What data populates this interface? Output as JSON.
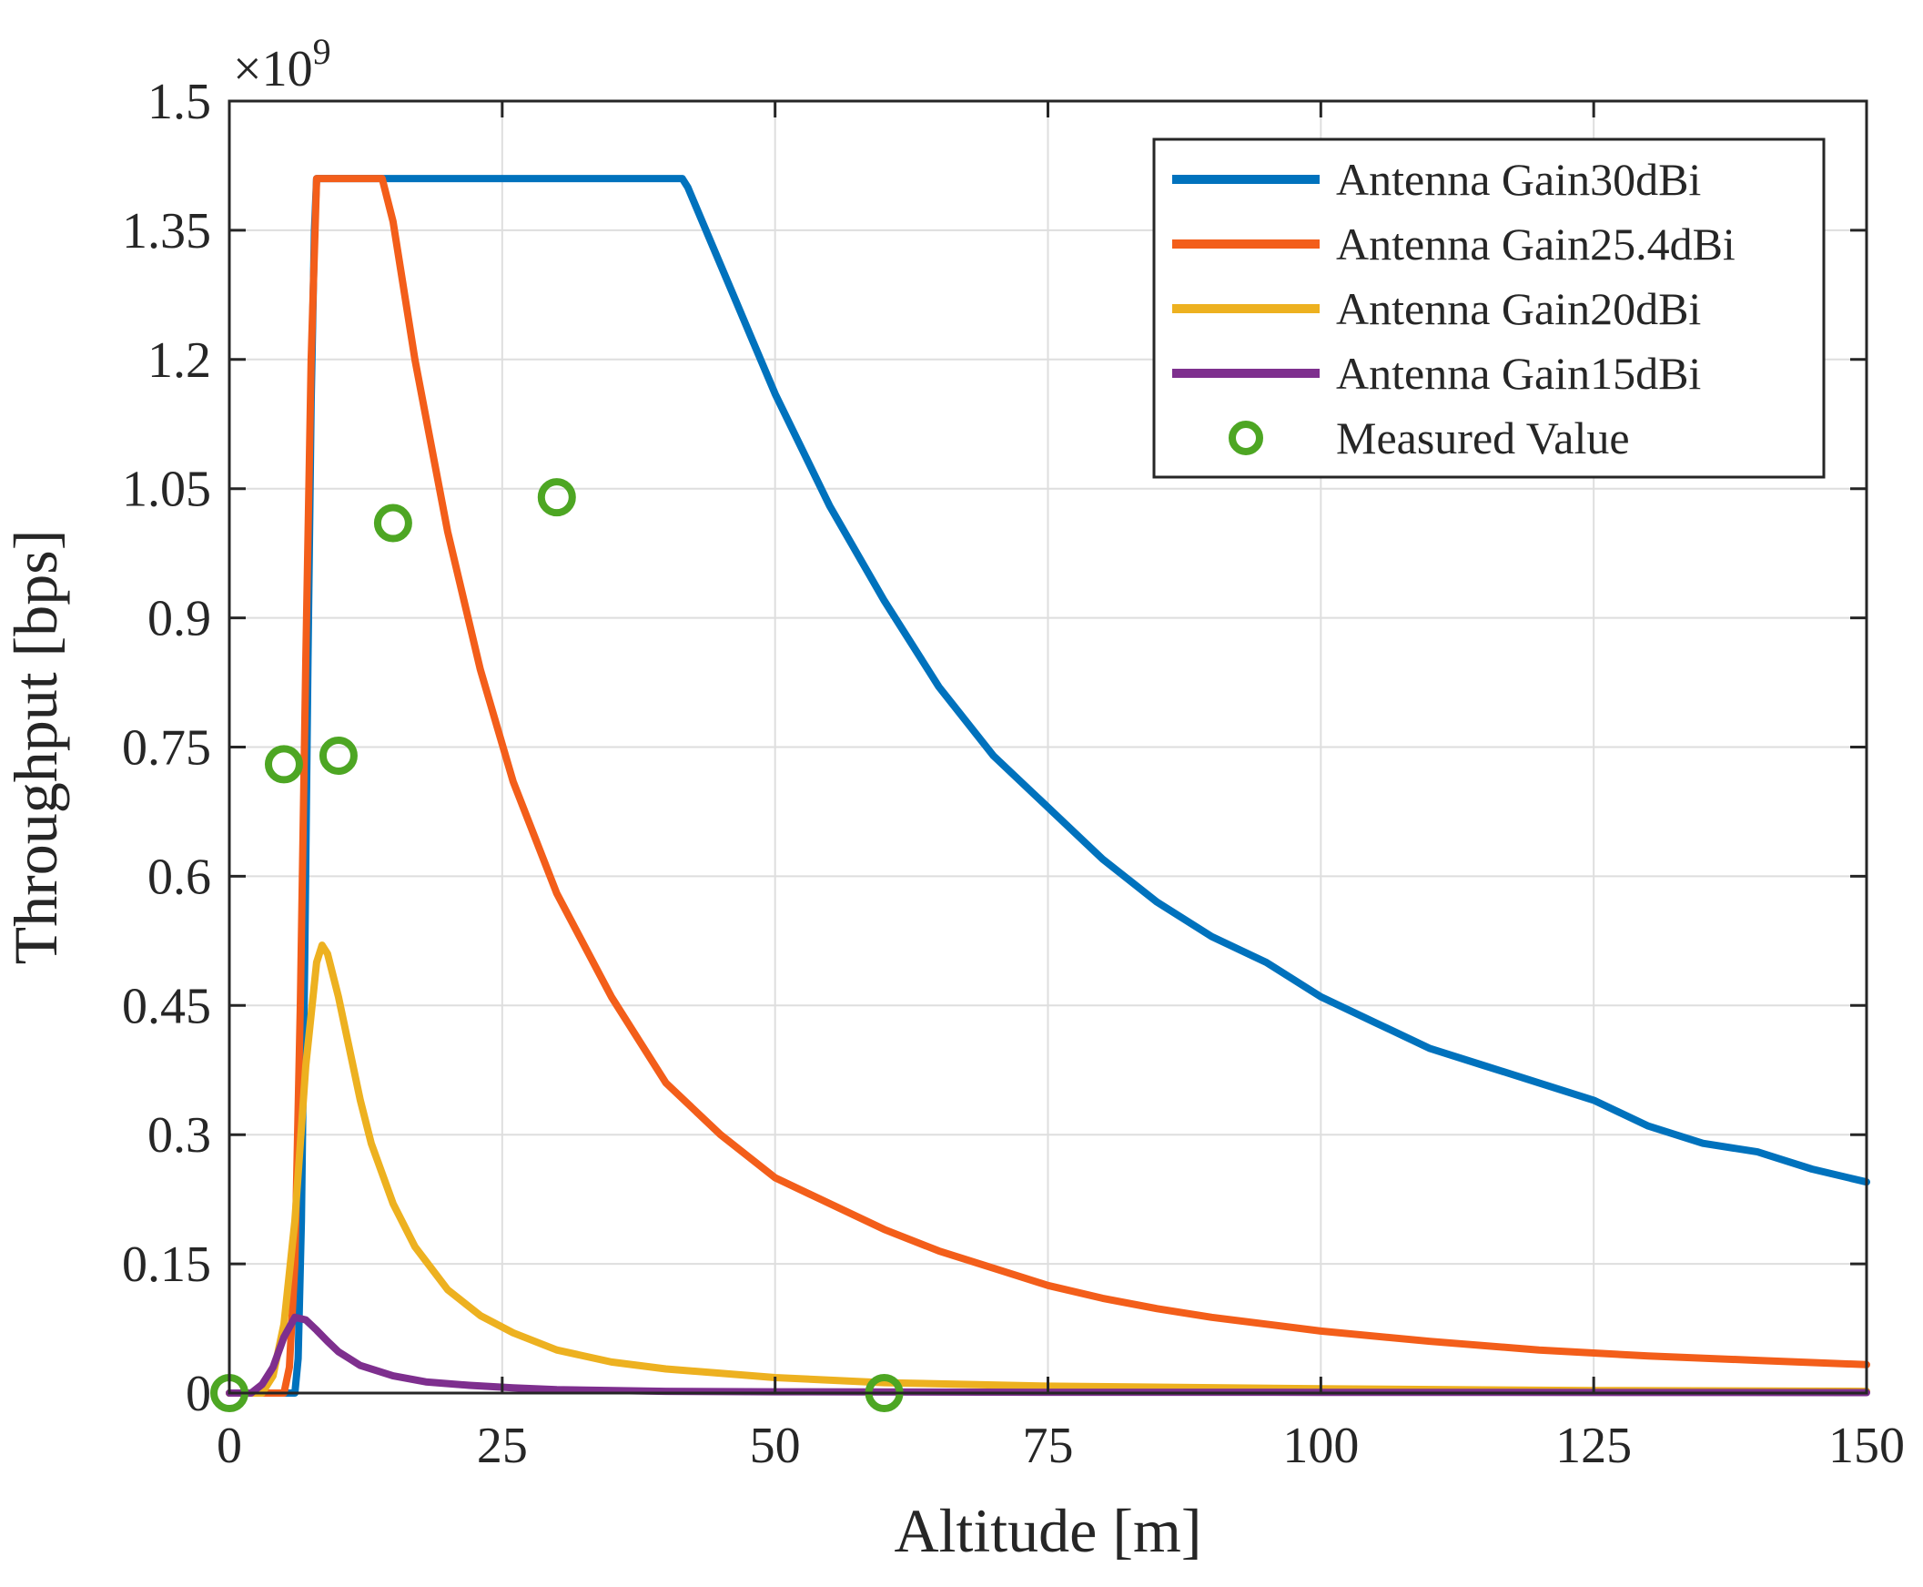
{
  "chart_data": {
    "type": "line",
    "title": "",
    "xlabel": "Altitude [m]",
    "ylabel": "Throughput [bps]",
    "y_exponent_prefix": "×10",
    "y_exponent_power": "9",
    "y_scale": 1000000000,
    "xlim": [
      0,
      150
    ],
    "ylim": [
      0,
      1.5
    ],
    "grid": true,
    "legend_position": "top-right",
    "x_ticks": [
      0,
      25,
      50,
      75,
      100,
      125,
      150
    ],
    "x_tick_labels": [
      "0",
      "25",
      "50",
      "75",
      "100",
      "125",
      "150"
    ],
    "y_ticks": [
      0,
      0.15,
      0.3,
      0.45,
      0.6,
      0.75,
      0.9,
      1.05,
      1.2,
      1.35,
      1.5
    ],
    "y_tick_labels": [
      "0",
      "0.15",
      "0.3",
      "0.45",
      "0.6",
      "0.75",
      "0.9",
      "1.05",
      "1.2",
      "1.35",
      "1.5"
    ],
    "series": [
      {
        "name": "Antenna Gain30dBi",
        "color": "#0072BD",
        "x": [
          0,
          6,
          6.3,
          6.6,
          6.9,
          7.2,
          7.5,
          7.8,
          8,
          41.5,
          42,
          44,
          46,
          48,
          50,
          55,
          60,
          65,
          70,
          75,
          80,
          85,
          90,
          95,
          100,
          105,
          110,
          115,
          120,
          125,
          130,
          135,
          140,
          145,
          150
        ],
        "values": [
          0,
          0,
          0.04,
          0.2,
          0.5,
          0.85,
          1.15,
          1.35,
          1.41,
          1.41,
          1.4,
          1.34,
          1.28,
          1.22,
          1.16,
          1.03,
          0.92,
          0.82,
          0.74,
          0.68,
          0.62,
          0.57,
          0.53,
          0.5,
          0.46,
          0.43,
          0.4,
          0.38,
          0.36,
          0.34,
          0.31,
          0.29,
          0.28,
          0.26,
          0.245
        ]
      },
      {
        "name": "Antenna Gain25.4dBi",
        "color": "#F35E1A",
        "x": [
          0,
          5,
          5.5,
          6,
          6.5,
          7,
          7.5,
          8,
          14,
          15,
          17,
          20,
          23,
          26,
          30,
          35,
          40,
          45,
          50,
          55,
          60,
          65,
          70,
          75,
          80,
          85,
          90,
          95,
          100,
          110,
          120,
          130,
          140,
          150
        ],
        "values": [
          0,
          0,
          0.03,
          0.15,
          0.45,
          0.85,
          1.2,
          1.41,
          1.41,
          1.36,
          1.2,
          1.0,
          0.84,
          0.71,
          0.58,
          0.46,
          0.36,
          0.3,
          0.25,
          0.22,
          0.19,
          0.165,
          0.145,
          0.125,
          0.11,
          0.098,
          0.088,
          0.08,
          0.072,
          0.06,
          0.05,
          0.043,
          0.038,
          0.033
        ]
      },
      {
        "name": "Antenna Gain20dBi",
        "color": "#EDB120",
        "x": [
          0,
          3,
          4,
          5,
          6,
          7,
          8,
          8.5,
          9,
          10,
          11,
          12,
          13,
          15,
          17,
          20,
          23,
          26,
          30,
          35,
          40,
          50,
          60,
          75,
          100,
          125,
          150
        ],
        "values": [
          0,
          0,
          0.02,
          0.08,
          0.2,
          0.38,
          0.5,
          0.52,
          0.51,
          0.46,
          0.4,
          0.34,
          0.29,
          0.22,
          0.17,
          0.12,
          0.09,
          0.07,
          0.05,
          0.036,
          0.028,
          0.018,
          0.012,
          0.008,
          0.005,
          0.003,
          0.002
        ]
      },
      {
        "name": "Antenna Gain15dBi",
        "color": "#7E2F8E",
        "x": [
          0,
          2,
          3,
          4,
          5,
          6,
          7,
          8,
          9,
          10,
          12,
          15,
          18,
          22,
          26,
          30,
          40,
          50,
          75,
          100,
          150
        ],
        "values": [
          0,
          0,
          0.01,
          0.03,
          0.065,
          0.088,
          0.085,
          0.073,
          0.06,
          0.048,
          0.032,
          0.02,
          0.013,
          0.009,
          0.006,
          0.004,
          0.002,
          0.0015,
          0.001,
          0.0008,
          0.0005
        ]
      }
    ],
    "measured": {
      "name": "Measured Value",
      "color": "#4DA623",
      "x": [
        0,
        5,
        10,
        15,
        30,
        60
      ],
      "values": [
        0,
        0.73,
        0.74,
        1.01,
        1.04,
        0
      ]
    }
  }
}
